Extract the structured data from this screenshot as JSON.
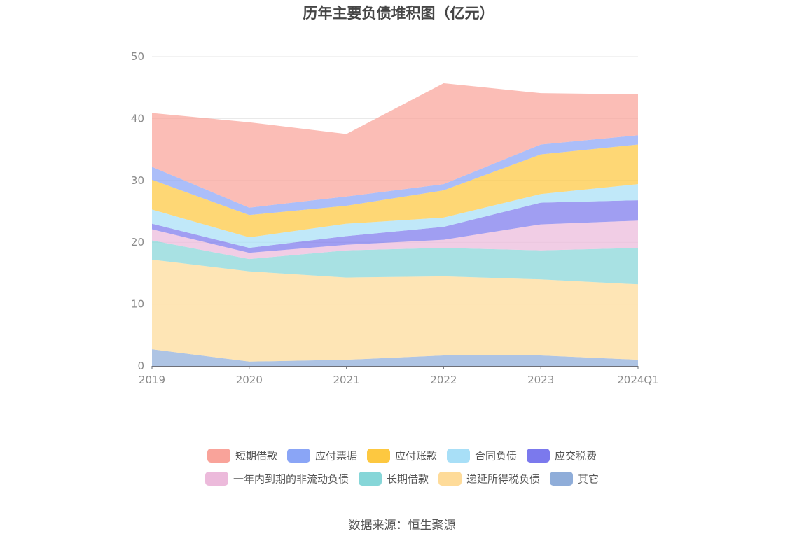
{
  "chart_data": {
    "type": "area",
    "stacked": true,
    "title": "历年主要负债堆积图（亿元）",
    "x": [
      "2019",
      "2020",
      "2021",
      "2022",
      "2023",
      "2024Q1"
    ],
    "ylim": [
      0,
      50
    ],
    "yticks": [
      0,
      10,
      20,
      30,
      40,
      50
    ],
    "grid": true,
    "legend_position": "bottom",
    "series": [
      {
        "name": "其它",
        "color": "#8fadd9",
        "values": [
          2.7,
          0.7,
          1.0,
          1.7,
          1.7,
          1.0
        ]
      },
      {
        "name": "递延所得税负债",
        "color": "#fedb99",
        "values": [
          14.5,
          14.6,
          13.3,
          12.8,
          12.3,
          12.2
        ]
      },
      {
        "name": "长期借款",
        "color": "#86d6d8",
        "values": [
          3.1,
          2.0,
          4.4,
          4.6,
          4.7,
          5.9
        ]
      },
      {
        "name": "一年内到期的非流动负债",
        "color": "#ecbadb",
        "values": [
          1.8,
          1.0,
          0.9,
          1.3,
          4.2,
          4.4
        ]
      },
      {
        "name": "应交税费",
        "color": "#7b79ed",
        "values": [
          0.9,
          0.8,
          1.4,
          2.1,
          3.5,
          3.3
        ]
      },
      {
        "name": "合同负债",
        "color": "#a8dff7",
        "values": [
          2.3,
          1.7,
          2.0,
          1.5,
          1.4,
          2.6
        ]
      },
      {
        "name": "应付账款",
        "color": "#fdc840",
        "values": [
          4.8,
          3.6,
          2.9,
          4.4,
          6.4,
          6.4
        ]
      },
      {
        "name": "应付票据",
        "color": "#8aa5f6",
        "values": [
          2.1,
          1.2,
          1.5,
          1.0,
          1.6,
          1.5
        ]
      },
      {
        "name": "短期借款",
        "color": "#f9a39a",
        "values": [
          8.7,
          13.8,
          10.1,
          16.3,
          8.3,
          6.6
        ]
      }
    ],
    "legend_order": [
      "短期借款",
      "应付票据",
      "应付账款",
      "合同负债",
      "应交税费",
      "一年内到期的非流动负债",
      "长期借款",
      "递延所得税负债",
      "其它"
    ]
  },
  "footer": {
    "source": "数据来源：恒生聚源"
  }
}
